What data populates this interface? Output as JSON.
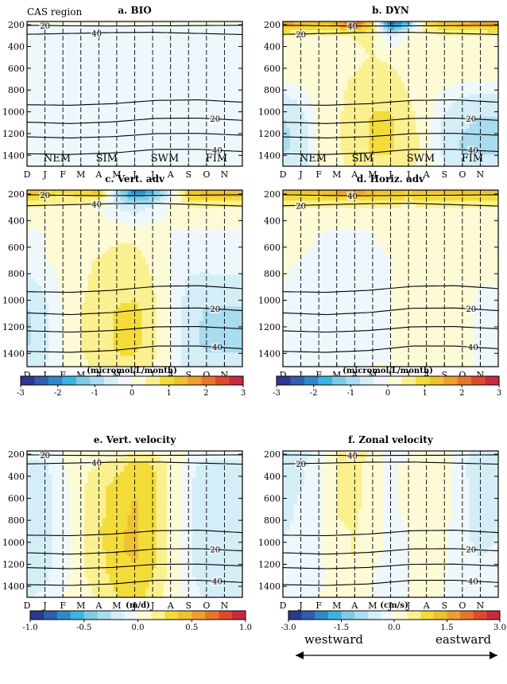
{
  "figure": {
    "region_label": "CAS region",
    "direction_west": "westward",
    "direction_east": "eastward"
  },
  "palette": [
    "#2b3990",
    "#2f5fad",
    "#2f88c8",
    "#3db4e0",
    "#7fcbe6",
    "#a9dcee",
    "#d4eef8",
    "#eef8fc",
    "#fdfad6",
    "#fbf08f",
    "#f3dc3a",
    "#efc12f",
    "#ee9f2e",
    "#e8762a",
    "#de4a2c",
    "#c62c3d"
  ],
  "chart_data": [
    {
      "type": "heatmap",
      "id": "bio",
      "title": "a. BIO",
      "x_ticks": [
        "D",
        "J",
        "F",
        "M",
        "A",
        "M",
        "J",
        "J",
        "A",
        "S",
        "O",
        "N"
      ],
      "y_ticks": [
        200,
        400,
        600,
        800,
        1000,
        1200,
        1400
      ],
      "ylim": [
        1500,
        170
      ],
      "contour_labels": [
        "20",
        "40",
        "20",
        "40"
      ],
      "monsoon_labels": [
        "NEM",
        "SIM",
        "SWM",
        "FIM"
      ],
      "field": [
        [
          0,
          0,
          0,
          0,
          0,
          0,
          0,
          0,
          0,
          0,
          0,
          0
        ],
        [
          -0.1,
          -0.1,
          -0.1,
          -0.1,
          -0.1,
          -0.1,
          -0.1,
          -0.1,
          -0.1,
          -0.1,
          -0.1,
          -0.1
        ],
        [
          -0.3,
          -0.3,
          -0.3,
          -0.3,
          -0.3,
          -0.3,
          -0.3,
          -0.3,
          -0.3,
          -0.3,
          -0.3,
          -0.3
        ],
        [
          -0.3,
          -0.3,
          -0.3,
          -0.3,
          -0.3,
          -0.3,
          -0.3,
          -0.3,
          -0.3,
          -0.3,
          -0.3,
          -0.3
        ],
        [
          -0.3,
          -0.3,
          -0.3,
          -0.3,
          -0.3,
          -0.3,
          -0.3,
          -0.3,
          -0.3,
          -0.3,
          -0.3,
          -0.3
        ],
        [
          -0.3,
          -0.3,
          -0.3,
          -0.3,
          -0.3,
          -0.3,
          -0.3,
          -0.3,
          -0.3,
          -0.3,
          -0.3,
          -0.3
        ],
        [
          -0.3,
          -0.3,
          -0.3,
          -0.3,
          -0.3,
          -0.3,
          -0.3,
          -0.3,
          -0.3,
          -0.3,
          -0.3,
          -0.3
        ],
        [
          -0.3,
          -0.3,
          -0.3,
          -0.3,
          -0.3,
          -0.3,
          -0.3,
          -0.3,
          -0.3,
          -0.3,
          -0.3,
          -0.3
        ]
      ],
      "colorbar": null
    },
    {
      "type": "heatmap",
      "id": "dyn",
      "title": "b. DYN",
      "x_ticks": [
        "D",
        "J",
        "F",
        "M",
        "A",
        "M",
        "J",
        "J",
        "A",
        "S",
        "O",
        "N"
      ],
      "y_ticks": [
        200,
        400,
        600,
        800,
        1000,
        1200,
        1400
      ],
      "ylim": [
        1500,
        170
      ],
      "contour_labels": [
        "40",
        "20",
        "20",
        "40"
      ],
      "monsoon_labels": [
        "NEM",
        "SIM",
        "SWM",
        "FIM"
      ],
      "field": [
        [
          1.7,
          1.4,
          1.1,
          1.6,
          2.4,
          1.0,
          -2.6,
          -1.4,
          0.8,
          1.3,
          1.4,
          1.6
        ],
        [
          0.4,
          0.3,
          0.3,
          0.3,
          0.4,
          0.4,
          -0.4,
          0.1,
          0.3,
          0.3,
          0.3,
          0.3
        ],
        [
          0.1,
          0.2,
          0.2,
          0.3,
          0.3,
          0.4,
          0.3,
          0.2,
          0.2,
          0.2,
          0.1,
          0.1
        ],
        [
          0.1,
          0.2,
          0.3,
          0.3,
          0.4,
          0.5,
          0.5,
          0.3,
          0.2,
          0.2,
          0.1,
          0.1
        ],
        [
          -0.6,
          -0.3,
          0.2,
          0.3,
          0.5,
          0.7,
          0.7,
          0.4,
          0.2,
          -0.2,
          -0.5,
          -0.6
        ],
        [
          -0.8,
          -0.6,
          0.1,
          0.3,
          0.6,
          0.8,
          0.8,
          0.5,
          0.2,
          -0.5,
          -0.7,
          -0.8
        ],
        [
          -0.8,
          -0.7,
          0.1,
          0.3,
          0.6,
          0.8,
          0.8,
          0.6,
          0.2,
          -0.5,
          -0.8,
          -0.8
        ],
        [
          -0.7,
          -0.6,
          0.1,
          0.3,
          0.5,
          0.7,
          0.7,
          0.5,
          0.2,
          -0.4,
          -0.7,
          -0.7
        ]
      ],
      "colorbar": null
    },
    {
      "type": "heatmap",
      "id": "vadv",
      "title": "c. Vert. adv",
      "x_ticks": [
        "D",
        "J",
        "F",
        "M",
        "A",
        "M",
        "J",
        "J",
        "A",
        "S",
        "O",
        "N"
      ],
      "y_ticks": [
        200,
        400,
        600,
        800,
        1000,
        1200,
        1400
      ],
      "ylim": [
        1500,
        170
      ],
      "contour_labels": [
        "20",
        "40",
        "20",
        "40"
      ],
      "field": [
        [
          1.4,
          1.1,
          0.8,
          1.0,
          1.2,
          -0.8,
          -2.2,
          -1.6,
          -0.4,
          1.2,
          1.4,
          1.4
        ],
        [
          0.4,
          0.3,
          0.2,
          0.2,
          0.1,
          -0.4,
          -0.6,
          -0.3,
          0.1,
          0.3,
          0.4,
          0.4
        ],
        [
          -0.1,
          0.0,
          0.1,
          0.2,
          0.2,
          0.3,
          0.3,
          0.2,
          0.0,
          -0.1,
          -0.1,
          -0.1
        ],
        [
          -0.1,
          0.0,
          0.1,
          0.3,
          0.4,
          0.5,
          0.5,
          0.3,
          0.0,
          -0.2,
          -0.2,
          -0.1
        ],
        [
          -0.6,
          -0.3,
          0.1,
          0.3,
          0.5,
          0.6,
          0.6,
          0.4,
          0.0,
          -0.5,
          -0.6,
          -0.6
        ],
        [
          -0.8,
          -0.5,
          0.0,
          0.4,
          0.6,
          0.8,
          0.9,
          0.5,
          0.0,
          -0.6,
          -0.8,
          -0.8
        ],
        [
          -0.8,
          -0.5,
          0.0,
          0.4,
          0.6,
          0.8,
          0.9,
          0.5,
          0.0,
          -0.7,
          -0.8,
          -0.8
        ],
        [
          -0.7,
          -0.4,
          0.0,
          0.3,
          0.5,
          0.7,
          0.7,
          0.4,
          0.0,
          -0.6,
          -0.7,
          -0.7
        ]
      ],
      "colorbar": {
        "unit": "(micromol/L/month)",
        "min": -3,
        "max": 3,
        "labels": [
          "-3",
          "-2",
          "-1",
          "0",
          "1",
          "2",
          "3"
        ]
      }
    },
    {
      "type": "heatmap",
      "id": "hadv",
      "title": "d. Horiz. adv",
      "x_ticks": [
        "D",
        "J",
        "F",
        "M",
        "A",
        "M",
        "J",
        "J",
        "A",
        "S",
        "O",
        "N"
      ],
      "y_ticks": [
        200,
        400,
        600,
        800,
        1000,
        1200,
        1400
      ],
      "ylim": [
        1500,
        170
      ],
      "contour_labels": [
        "40",
        "20",
        "20",
        "40"
      ],
      "field": [
        [
          1.2,
          1.3,
          1.3,
          1.5,
          1.6,
          1.4,
          1.2,
          1.1,
          1.2,
          1.3,
          1.3,
          1.2
        ],
        [
          0.3,
          0.3,
          0.3,
          0.3,
          0.3,
          0.3,
          0.3,
          0.3,
          0.3,
          0.3,
          0.3,
          0.3
        ],
        [
          0.2,
          0.1,
          0.0,
          -0.1,
          -0.1,
          0.0,
          0.1,
          0.2,
          0.2,
          0.2,
          0.2,
          0.2
        ],
        [
          0.1,
          0.0,
          -0.1,
          -0.2,
          -0.2,
          -0.1,
          0.0,
          0.1,
          0.2,
          0.2,
          0.1,
          0.1
        ],
        [
          0.0,
          -0.2,
          -0.2,
          -0.2,
          -0.2,
          -0.1,
          0.0,
          0.1,
          0.2,
          0.2,
          0.1,
          0.0
        ],
        [
          -0.1,
          -0.3,
          -0.2,
          -0.2,
          -0.2,
          -0.1,
          0.0,
          0.1,
          0.2,
          0.2,
          0.1,
          -0.1
        ],
        [
          -0.1,
          -0.3,
          -0.2,
          -0.2,
          -0.2,
          -0.1,
          0.0,
          0.1,
          0.2,
          0.2,
          0.1,
          -0.1
        ],
        [
          -0.1,
          -0.2,
          -0.2,
          -0.1,
          -0.1,
          0.0,
          0.0,
          0.1,
          0.2,
          0.2,
          0.1,
          -0.1
        ]
      ],
      "colorbar": {
        "unit": "(micromol/L/month)",
        "min": -3,
        "max": 3,
        "labels": [
          "-3",
          "-2",
          "-1",
          "0",
          "1",
          "2",
          "3"
        ]
      }
    },
    {
      "type": "heatmap",
      "id": "vvel",
      "title": "e. Vert. velocity",
      "x_ticks": [
        "D",
        "J",
        "F",
        "M",
        "A",
        "M",
        "J",
        "J",
        "A",
        "S",
        "O",
        "N"
      ],
      "y_ticks": [
        200,
        400,
        600,
        800,
        1000,
        1200,
        1400
      ],
      "ylim": [
        1500,
        170
      ],
      "contour_labels": [
        "20",
        "40",
        "20",
        "40"
      ],
      "field": [
        [
          -0.05,
          -0.05,
          0.0,
          0.0,
          0.0,
          0.05,
          0.1,
          0.1,
          0.05,
          0.0,
          -0.05,
          -0.05
        ],
        [
          -0.2,
          -0.15,
          0.0,
          0.08,
          0.15,
          0.2,
          0.3,
          0.25,
          0.1,
          -0.05,
          -0.2,
          -0.2
        ],
        [
          -0.25,
          -0.2,
          -0.05,
          0.1,
          0.2,
          0.3,
          0.35,
          0.3,
          0.1,
          -0.1,
          -0.25,
          -0.25
        ],
        [
          -0.25,
          -0.2,
          -0.05,
          0.1,
          0.2,
          0.3,
          0.4,
          0.3,
          0.1,
          -0.1,
          -0.25,
          -0.25
        ],
        [
          -0.25,
          -0.2,
          -0.05,
          0.1,
          0.25,
          0.35,
          0.4,
          0.3,
          0.1,
          -0.1,
          -0.25,
          -0.25
        ],
        [
          -0.25,
          -0.2,
          -0.05,
          0.1,
          0.2,
          0.35,
          0.4,
          0.3,
          0.1,
          -0.1,
          -0.25,
          -0.25
        ],
        [
          -0.2,
          -0.15,
          -0.05,
          0.1,
          0.2,
          0.3,
          0.35,
          0.25,
          0.1,
          -0.1,
          -0.2,
          -0.2
        ],
        [
          -0.15,
          -0.1,
          0.0,
          0.05,
          0.15,
          0.25,
          0.3,
          0.2,
          0.05,
          -0.05,
          -0.15,
          -0.15
        ]
      ],
      "colorbar": {
        "unit": "(m/d)",
        "min": -1.0,
        "max": 1.0,
        "labels": [
          "-1.0",
          "-0.5",
          "0.0",
          "0.5",
          "1.0"
        ]
      }
    },
    {
      "type": "heatmap",
      "id": "zvel",
      "title": "f. Zonal velocity",
      "x_ticks": [
        "D",
        "J",
        "F",
        "M",
        "A",
        "M",
        "J",
        "J",
        "A",
        "S",
        "O",
        "N"
      ],
      "y_ticks": [
        200,
        400,
        600,
        800,
        1000,
        1200,
        1400
      ],
      "ylim": [
        1500,
        170
      ],
      "contour_labels": [
        "40",
        "20",
        "20",
        "40"
      ],
      "field": [
        [
          -0.6,
          -0.6,
          -0.2,
          0.4,
          0.6,
          0.3,
          -0.2,
          -0.1,
          0.1,
          0.2,
          -0.3,
          -0.5
        ],
        [
          -0.6,
          -0.5,
          -0.1,
          0.4,
          0.5,
          0.2,
          -0.1,
          0.1,
          0.3,
          0.2,
          -0.3,
          -0.6
        ],
        [
          -0.5,
          -0.4,
          -0.1,
          0.4,
          0.5,
          0.1,
          -0.1,
          0.1,
          0.3,
          0.2,
          -0.3,
          -0.5
        ],
        [
          -0.5,
          -0.3,
          -0.1,
          0.4,
          0.5,
          0.1,
          -0.1,
          0.1,
          0.3,
          0.2,
          -0.3,
          -0.5
        ],
        [
          -0.4,
          -0.3,
          -0.1,
          0.3,
          0.4,
          0.1,
          -0.1,
          0.0,
          0.2,
          0.1,
          -0.3,
          -0.5
        ],
        [
          -0.3,
          -0.2,
          -0.1,
          0.3,
          0.4,
          0.1,
          -0.1,
          0.0,
          0.1,
          0.1,
          -0.3,
          -0.4
        ],
        [
          -0.2,
          -0.1,
          -0.1,
          0.2,
          0.3,
          0.0,
          -0.1,
          0.0,
          0.1,
          0.0,
          -0.2,
          -0.3
        ],
        [
          -0.1,
          -0.1,
          0.0,
          0.1,
          0.2,
          0.0,
          -0.1,
          0.0,
          0.0,
          0.0,
          -0.1,
          -0.2
        ]
      ],
      "colorbar": {
        "unit": "(cm/s)",
        "min": -3.0,
        "max": 3.0,
        "labels": [
          "-3.0",
          "-1.5",
          "0.0",
          "1.5",
          "3.0"
        ]
      }
    }
  ]
}
